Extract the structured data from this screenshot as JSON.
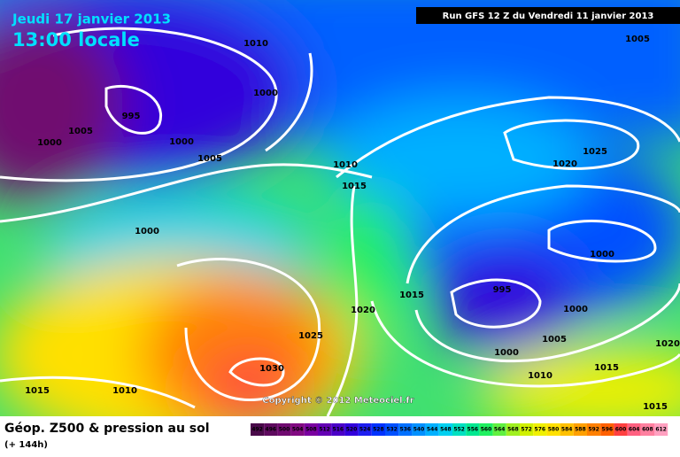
{
  "header": {
    "date": "Jeudi 17 janvier 2013",
    "time": "13:00 locale",
    "run": "Run GFS 12 Z du Vendredi 11 janvier 2013"
  },
  "isobar_labels": [
    1010,
    1005,
    1000,
    995,
    1005,
    1000,
    1000,
    1005,
    1010,
    1015,
    1020,
    1025,
    1000,
    1000,
    995,
    1015,
    1020,
    1000,
    1025,
    1005,
    1000,
    1030,
    1020,
    1015,
    1010,
    1015,
    1010,
    1015
  ],
  "copyright": "Copyright © 2012 Meteociel.fr",
  "footer": {
    "title": "Géop. Z500 & pression au sol",
    "lead": "(+ 144h)"
  },
  "legend": [
    {
      "label": 492,
      "color": "#4a0a4a"
    },
    {
      "label": 496,
      "color": "#5e0a5e"
    },
    {
      "label": 500,
      "color": "#700a70"
    },
    {
      "label": 504,
      "color": "#820a82"
    },
    {
      "label": 508,
      "color": "#7a00a0"
    },
    {
      "label": 512,
      "color": "#6400b4"
    },
    {
      "label": 516,
      "color": "#4b00c8"
    },
    {
      "label": 520,
      "color": "#3200dc"
    },
    {
      "label": 524,
      "color": "#1e1ef0"
    },
    {
      "label": 528,
      "color": "#0032ff"
    },
    {
      "label": 532,
      "color": "#0050ff"
    },
    {
      "label": 536,
      "color": "#0070ff"
    },
    {
      "label": 540,
      "color": "#0090ff"
    },
    {
      "label": 544,
      "color": "#00b0ff"
    },
    {
      "label": 548,
      "color": "#00d0f0"
    },
    {
      "label": 552,
      "color": "#00e0c0"
    },
    {
      "label": 556,
      "color": "#00e890"
    },
    {
      "label": 560,
      "color": "#20f060"
    },
    {
      "label": 564,
      "color": "#60f040"
    },
    {
      "label": 568,
      "color": "#a0f020"
    },
    {
      "label": 572,
      "color": "#d0f000"
    },
    {
      "label": 576,
      "color": "#f0f000"
    },
    {
      "label": 580,
      "color": "#ffe000"
    },
    {
      "label": 584,
      "color": "#ffc000"
    },
    {
      "label": 588,
      "color": "#ffa000"
    },
    {
      "label": 592,
      "color": "#ff8000"
    },
    {
      "label": 596,
      "color": "#ff6000"
    },
    {
      "label": 600,
      "color": "#ff4040"
    },
    {
      "label": 604,
      "color": "#ff6080"
    },
    {
      "label": 608,
      "color": "#ff80a0"
    },
    {
      "label": 612,
      "color": "#ffa0c0"
    }
  ]
}
